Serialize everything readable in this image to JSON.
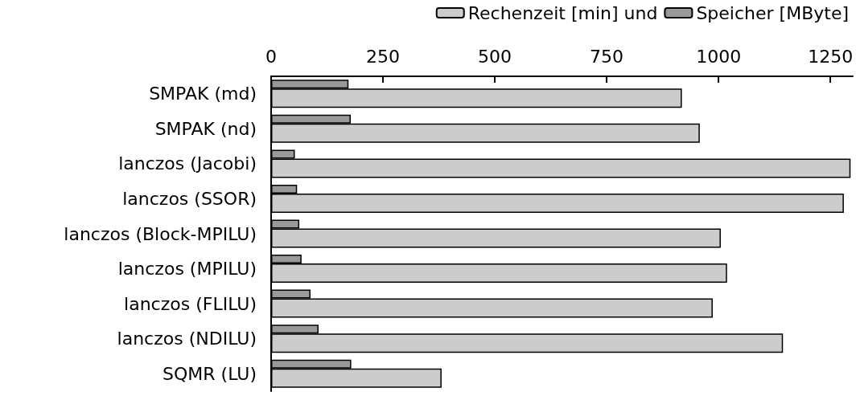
{
  "chart_data": {
    "type": "bar",
    "orientation": "horizontal",
    "categories": [
      "SMPAK (md)",
      "SMPAK (nd)",
      "lanczos (Jacobi)",
      "lanczos (SSOR)",
      "lanczos (Block-MPILU)",
      "lanczos (MPILU)",
      "lanczos (FLILU)",
      "lanczos (NDILU)",
      "SQMR (LU)"
    ],
    "series": [
      {
        "name": "Speicher [MByte]",
        "color": "#999999",
        "values": [
          173,
          178,
          53,
          58,
          63,
          68,
          88,
          106,
          179
        ]
      },
      {
        "name": "Rechenzeit [min] und",
        "color": "#cccccc",
        "values": [
          918,
          958,
          1295,
          1280,
          1005,
          1019,
          987,
          1144,
          381
        ]
      }
    ],
    "xlim": [
      0,
      1300
    ],
    "xticks": [
      0,
      250,
      500,
      750,
      1000,
      1250
    ],
    "grid": false,
    "legend": "top right"
  }
}
